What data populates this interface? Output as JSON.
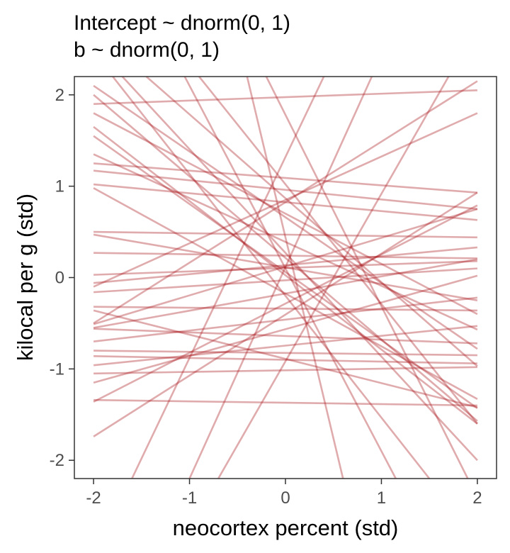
{
  "chart_data": {
    "type": "line",
    "title_lines": [
      "Intercept ~ dnorm(0, 1)",
      "b ~ dnorm(0, 1)"
    ],
    "xlabel": "neocortex percent (std)",
    "ylabel": "kilocal per g (std)",
    "xlim": [
      -2.2,
      2.2
    ],
    "ylim": [
      -2.2,
      2.2
    ],
    "x_ticks": [
      -2,
      -1,
      0,
      1,
      2
    ],
    "y_ticks": [
      -2,
      -1,
      0,
      1,
      2
    ],
    "x_tick_labels": [
      "-2",
      "-1",
      "0",
      "1",
      "2"
    ],
    "y_tick_labels": [
      "-2",
      "-1",
      "0",
      "1",
      "2"
    ],
    "grid": false,
    "line_color": "#a50f15",
    "line_opacity": 0.35,
    "lines": [
      {
        "x": [
          -2,
          2
        ],
        "y": [
          1.9,
          2.05
        ]
      },
      {
        "x": [
          -2,
          2
        ],
        "y": [
          1.25,
          0.93
        ]
      },
      {
        "x": [
          -2,
          2
        ],
        "y": [
          1.17,
          0.75
        ]
      },
      {
        "x": [
          -2,
          2
        ],
        "y": [
          1.02,
          0.63
        ]
      },
      {
        "x": [
          -2,
          2
        ],
        "y": [
          0.5,
          0.44
        ]
      },
      {
        "x": [
          -2,
          2
        ],
        "y": [
          0.27,
          0.21
        ]
      },
      {
        "x": [
          -2,
          2
        ],
        "y": [
          0.03,
          0.18
        ]
      },
      {
        "x": [
          -2,
          2
        ],
        "y": [
          -0.06,
          0.33
        ]
      },
      {
        "x": [
          -2,
          2
        ],
        "y": [
          -0.16,
          0.1
        ]
      },
      {
        "x": [
          -2,
          2
        ],
        "y": [
          -0.32,
          -0.36
        ]
      },
      {
        "x": [
          -2,
          2
        ],
        "y": [
          -0.55,
          0.2
        ]
      },
      {
        "x": [
          -2,
          2
        ],
        "y": [
          -0.7,
          -0.22
        ]
      },
      {
        "x": [
          -2,
          2
        ],
        "y": [
          -0.8,
          -0.85
        ]
      },
      {
        "x": [
          -2,
          2
        ],
        "y": [
          -0.96,
          -0.53
        ]
      },
      {
        "x": [
          -2,
          2
        ],
        "y": [
          -1.05,
          -0.98
        ]
      },
      {
        "x": [
          -2,
          2
        ],
        "y": [
          -1.15,
          0.02
        ]
      },
      {
        "x": [
          -2,
          2
        ],
        "y": [
          -1.34,
          -1.4
        ]
      },
      {
        "x": [
          -2,
          2
        ],
        "y": [
          -1.36,
          0.79
        ]
      },
      {
        "x": [
          -2,
          2
        ],
        "y": [
          -1.74,
          0.93
        ]
      },
      {
        "x": [
          -2,
          2
        ],
        "y": [
          -0.51,
          0.75
        ]
      },
      {
        "x": [
          -2,
          2
        ],
        "y": [
          -0.86,
          -0.94
        ]
      },
      {
        "x": [
          -2,
          2
        ],
        "y": [
          0.98,
          -1.33
        ]
      },
      {
        "x": [
          -2,
          2
        ],
        "y": [
          1.35,
          -0.57
        ]
      },
      {
        "x": [
          -2,
          2
        ],
        "y": [
          1.65,
          -1.6
        ]
      },
      {
        "x": [
          -2,
          2
        ],
        "y": [
          2.0,
          -1.57
        ]
      },
      {
        "x": [
          -2,
          2
        ],
        "y": [
          1.55,
          -1.43
        ]
      },
      {
        "x": [
          -2,
          2
        ],
        "y": [
          0.47,
          -0.25
        ]
      },
      {
        "x": [
          -2,
          2
        ],
        "y": [
          -0.36,
          -1.42
        ]
      },
      {
        "x": [
          -2,
          2
        ],
        "y": [
          -0.56,
          -0.72
        ]
      },
      {
        "x": [
          -2,
          2
        ],
        "y": [
          2.1,
          -0.78
        ]
      },
      {
        "x": [
          -2,
          2
        ],
        "y": [
          1.8,
          -0.4
        ]
      },
      {
        "x": [
          -1.45,
          2
        ],
        "y": [
          2.2,
          -0.97
        ]
      },
      {
        "x": [
          -1.05,
          1.15
        ],
        "y": [
          2.2,
          -2.2
        ]
      },
      {
        "x": [
          -0.4,
          0.6
        ],
        "y": [
          2.2,
          -2.2
        ]
      },
      {
        "x": [
          -1.8,
          1.5
        ],
        "y": [
          2.2,
          -2.2
        ]
      },
      {
        "x": [
          -0.9,
          2
        ],
        "y": [
          2.2,
          -1.6
        ]
      },
      {
        "x": [
          -1.7,
          2
        ],
        "y": [
          2.2,
          -2.0
        ]
      },
      {
        "x": [
          -0.2,
          1.9
        ],
        "y": [
          2.2,
          -2.2
        ]
      },
      {
        "x": [
          -1.6,
          0.4
        ],
        "y": [
          -2.2,
          2.2
        ]
      },
      {
        "x": [
          -1.0,
          0.9
        ],
        "y": [
          -2.2,
          2.2
        ]
      },
      {
        "x": [
          -0.7,
          1.7
        ],
        "y": [
          -2.2,
          2.2
        ]
      },
      {
        "x": [
          -2,
          2
        ],
        "y": [
          -0.5,
          2.15
        ]
      },
      {
        "x": [
          -2,
          2
        ],
        "y": [
          -0.1,
          1.8
        ]
      }
    ]
  }
}
